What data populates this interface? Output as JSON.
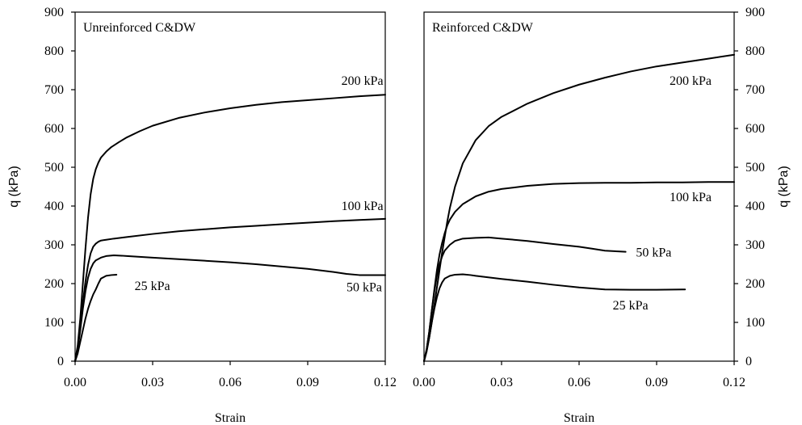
{
  "chart_data": [
    {
      "type": "line",
      "title": "Unreinforced C&DW",
      "xlabel": "Strain",
      "ylabel": "q (kPa)",
      "xlim": [
        0,
        0.12
      ],
      "ylim": [
        0,
        900
      ],
      "xticks": [
        "0.00",
        "0.03",
        "0.06",
        "0.09",
        "0.12"
      ],
      "yticks": [
        "0",
        "100",
        "200",
        "300",
        "400",
        "500",
        "600",
        "700",
        "800",
        "900"
      ],
      "y_axis_side": "left",
      "grid": false,
      "series": [
        {
          "name": "200 kPa",
          "x": [
            0,
            0.001,
            0.002,
            0.003,
            0.004,
            0.005,
            0.006,
            0.007,
            0.008,
            0.009,
            0.01,
            0.012,
            0.014,
            0.017,
            0.02,
            0.025,
            0.03,
            0.04,
            0.05,
            0.06,
            0.07,
            0.08,
            0.09,
            0.1,
            0.11,
            0.12
          ],
          "y": [
            0,
            40,
            110,
            200,
            290,
            370,
            430,
            470,
            495,
            512,
            525,
            540,
            552,
            565,
            577,
            593,
            607,
            627,
            641,
            652,
            661,
            668,
            673,
            678,
            683,
            687
          ]
        },
        {
          "name": "100 kPa",
          "x": [
            0,
            0.001,
            0.002,
            0.003,
            0.004,
            0.005,
            0.006,
            0.007,
            0.008,
            0.009,
            0.01,
            0.012,
            0.015,
            0.02,
            0.03,
            0.04,
            0.05,
            0.06,
            0.07,
            0.08,
            0.09,
            0.1,
            0.11,
            0.12
          ],
          "y": [
            0,
            35,
            90,
            150,
            205,
            248,
            278,
            295,
            303,
            308,
            311,
            313,
            316,
            320,
            328,
            335,
            340,
            345,
            349,
            353,
            357,
            361,
            364,
            367
          ]
        },
        {
          "name": "50 kPa",
          "x": [
            0,
            0.001,
            0.002,
            0.003,
            0.004,
            0.005,
            0.006,
            0.007,
            0.008,
            0.01,
            0.012,
            0.015,
            0.018,
            0.02,
            0.03,
            0.04,
            0.05,
            0.06,
            0.07,
            0.08,
            0.09,
            0.1,
            0.105,
            0.11,
            0.12
          ],
          "y": [
            0,
            30,
            80,
            135,
            180,
            215,
            238,
            252,
            260,
            267,
            271,
            273,
            272,
            271,
            267,
            263,
            259,
            255,
            250,
            244,
            238,
            230,
            225,
            222,
            222
          ]
        },
        {
          "name": "25 kPa",
          "x": [
            0,
            0.001,
            0.002,
            0.003,
            0.004,
            0.005,
            0.006,
            0.007,
            0.008,
            0.009,
            0.01,
            0.012,
            0.014,
            0.016
          ],
          "y": [
            0,
            20,
            50,
            80,
            110,
            135,
            155,
            172,
            185,
            200,
            213,
            220,
            222,
            223
          ]
        }
      ],
      "annotations": [
        {
          "text": "200 kPa",
          "x": 0.103,
          "y": 712
        },
        {
          "text": "100 kPa",
          "x": 0.103,
          "y": 390
        },
        {
          "text": "50 kPa",
          "x": 0.105,
          "y": 180
        },
        {
          "text": "25 kPa",
          "x": 0.023,
          "y": 183
        }
      ]
    },
    {
      "type": "line",
      "title": "Reinforced C&DW",
      "xlabel": "Strain",
      "ylabel": "q (kPa)",
      "xlim": [
        0,
        0.12
      ],
      "ylim": [
        0,
        900
      ],
      "xticks": [
        "0.00",
        "0.03",
        "0.06",
        "0.09",
        "0.12"
      ],
      "yticks": [
        "0",
        "100",
        "200",
        "300",
        "400",
        "500",
        "600",
        "700",
        "800",
        "900"
      ],
      "y_axis_side": "right",
      "grid": false,
      "series": [
        {
          "name": "200 kPa",
          "x": [
            0,
            0.001,
            0.002,
            0.003,
            0.004,
            0.005,
            0.006,
            0.007,
            0.008,
            0.009,
            0.01,
            0.012,
            0.015,
            0.02,
            0.025,
            0.03,
            0.04,
            0.05,
            0.06,
            0.07,
            0.08,
            0.09,
            0.1,
            0.11,
            0.12
          ],
          "y": [
            0,
            25,
            60,
            100,
            145,
            190,
            235,
            280,
            320,
            360,
            395,
            450,
            510,
            570,
            606,
            630,
            664,
            691,
            713,
            731,
            747,
            760,
            770,
            780,
            790
          ]
        },
        {
          "name": "100 kPa",
          "x": [
            0,
            0.001,
            0.002,
            0.003,
            0.004,
            0.005,
            0.006,
            0.007,
            0.008,
            0.009,
            0.01,
            0.012,
            0.015,
            0.02,
            0.025,
            0.03,
            0.04,
            0.05,
            0.06,
            0.07,
            0.08,
            0.09,
            0.1,
            0.11,
            0.12
          ],
          "y": [
            0,
            30,
            75,
            130,
            185,
            235,
            275,
            305,
            330,
            350,
            365,
            385,
            405,
            425,
            437,
            444,
            452,
            457,
            459,
            460,
            460,
            461,
            461,
            462,
            462
          ]
        },
        {
          "name": "50 kPa",
          "x": [
            0,
            0.001,
            0.002,
            0.003,
            0.004,
            0.005,
            0.006,
            0.007,
            0.008,
            0.01,
            0.012,
            0.015,
            0.02,
            0.025,
            0.03,
            0.04,
            0.05,
            0.06,
            0.065,
            0.07,
            0.075,
            0.078
          ],
          "y": [
            0,
            30,
            75,
            130,
            180,
            220,
            250,
            270,
            285,
            300,
            310,
            316,
            318,
            319,
            316,
            310,
            302,
            295,
            290,
            285,
            283,
            282
          ]
        },
        {
          "name": "25 kPa",
          "x": [
            0,
            0.001,
            0.002,
            0.003,
            0.004,
            0.005,
            0.006,
            0.007,
            0.008,
            0.01,
            0.012,
            0.015,
            0.018,
            0.02,
            0.03,
            0.04,
            0.05,
            0.06,
            0.07,
            0.08,
            0.09,
            0.1,
            0.101
          ],
          "y": [
            0,
            25,
            60,
            100,
            135,
            165,
            188,
            203,
            213,
            220,
            223,
            224,
            222,
            220,
            212,
            205,
            197,
            190,
            185,
            184,
            184,
            185,
            185
          ]
        }
      ],
      "annotations": [
        {
          "text": "200 kPa",
          "x": 0.095,
          "y": 712
        },
        {
          "text": "100 kPa",
          "x": 0.095,
          "y": 412
        },
        {
          "text": "50 kPa",
          "x": 0.082,
          "y": 270
        },
        {
          "text": "25 kPa",
          "x": 0.073,
          "y": 133
        }
      ]
    }
  ]
}
